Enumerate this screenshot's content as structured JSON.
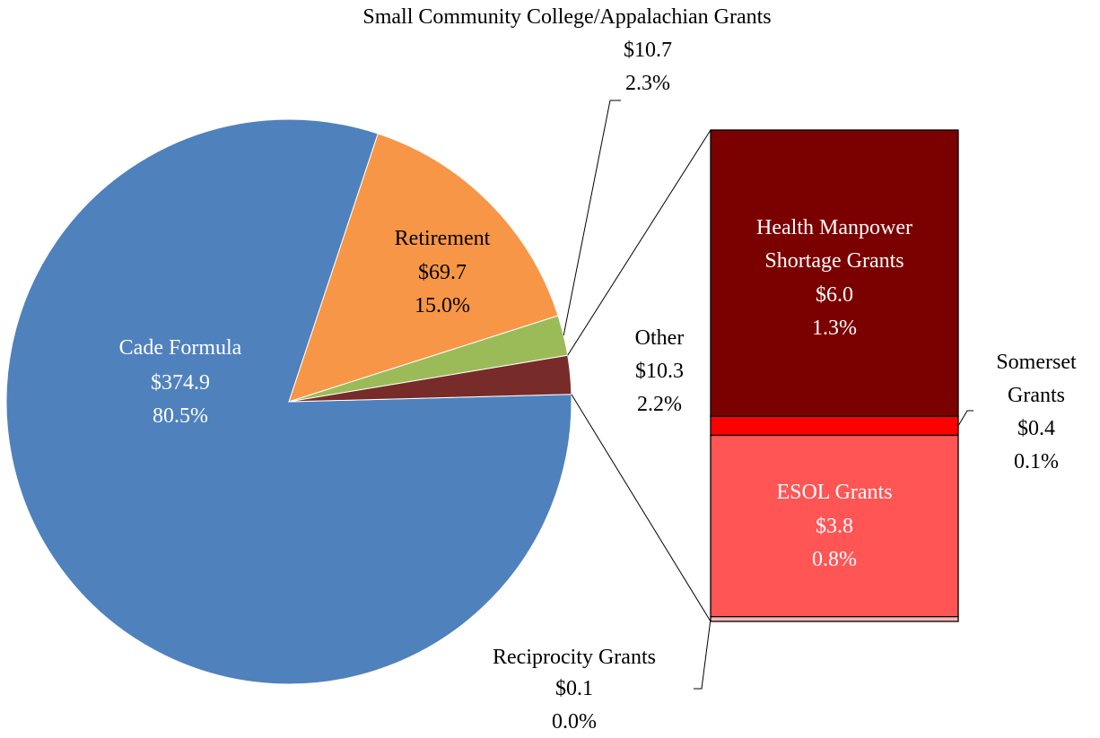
{
  "chart_data": {
    "type": "pie",
    "slices": {
      "categories": [
        "Cade Formula",
        "Retirement",
        "Small Community College/Appalachian Grants",
        "Other"
      ],
      "values": [
        374.9,
        69.7,
        10.7,
        10.3
      ],
      "value_labels": [
        "$374.9",
        "$69.7",
        "$10.7",
        "$10.3"
      ],
      "percents": [
        80.5,
        15.0,
        2.3,
        2.2
      ],
      "percent_labels": [
        "80.5%",
        "15.0%",
        "2.3%",
        "2.2%"
      ],
      "colors": [
        "#4f81bd",
        "#f79646",
        "#9bbb59",
        "#772c2a"
      ]
    },
    "bar": {
      "categories": [
        "Health Manpower Shortage Grants",
        "Somerset Grants",
        "ESOL Grants",
        "Reciprocity Grants"
      ],
      "values": [
        6.0,
        0.4,
        3.8,
        0.1
      ],
      "value_labels": [
        "$6.0",
        "$0.4",
        "$3.8",
        "$0.1"
      ],
      "percents": [
        1.3,
        0.1,
        0.8,
        0.0
      ],
      "percent_labels": [
        "1.3%",
        "0.1%",
        "0.8%",
        "0.0%"
      ],
      "colors": [
        "#7b0000",
        "#ff0000",
        "#ff5555",
        "#ffb3b3"
      ]
    }
  }
}
